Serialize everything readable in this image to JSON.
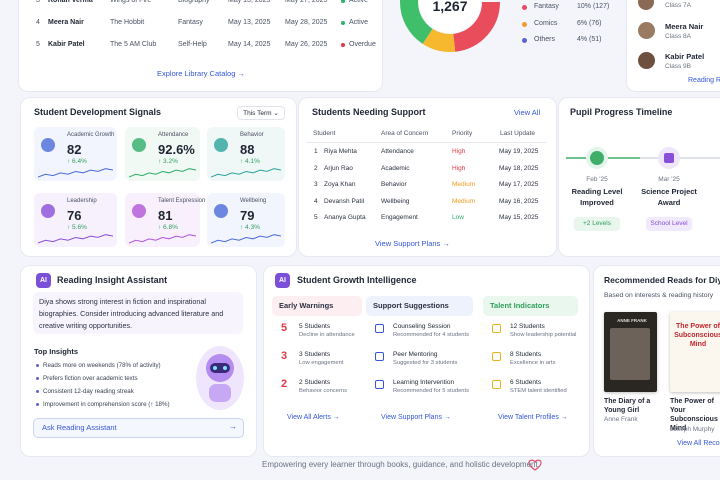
{
  "library_table": {
    "rows": [
      [
        "3",
        "Rohan Verma",
        "Wings of Fire",
        "Biography",
        "May 13, 2025",
        "May 27, 2025",
        "Active"
      ],
      [
        "4",
        "Meera Nair",
        "The Hobbit",
        "Fantasy",
        "May 13, 2025",
        "May 28, 2025",
        "Active"
      ],
      [
        "5",
        "Kabir Patel",
        "The 5 AM Club",
        "Self-Help",
        "May 14, 2025",
        "May 26, 2025",
        "Overdue"
      ]
    ],
    "link": "Explore Library Catalog →"
  },
  "genre_chart": {
    "total": "1,267",
    "legend": [
      {
        "label": "Fantasy",
        "value": "10% (127)",
        "color": "#e94c5b"
      },
      {
        "label": "Comics",
        "value": "6% (76)",
        "color": "#f39a2e"
      },
      {
        "label": "Others",
        "value": "4% (51)",
        "color": "#5a63d6"
      }
    ]
  },
  "student_list": {
    "top_class": "Class 7A",
    "items": [
      {
        "name": "Meera Nair",
        "class": "Class 8A"
      },
      {
        "name": "Kabir Patel",
        "class": "Class 9B"
      }
    ],
    "link": "Reading Reports"
  },
  "development_signals": {
    "title": "Student Development Signals",
    "period": "This Term ⌄",
    "tiles": [
      {
        "label": "Academic Growth",
        "value": "82",
        "change": "↑ 6.4%"
      },
      {
        "label": "Attendance",
        "value": "92.6%",
        "change": "↑ 3.2%"
      },
      {
        "label": "Behavior",
        "value": "88",
        "change": "↑ 4.1%"
      },
      {
        "label": "Leadership",
        "value": "76",
        "change": "↑ 5.6%"
      },
      {
        "label": "Talent Expression",
        "value": "81",
        "change": "↑ 6.8%"
      },
      {
        "label": "Wellbeing",
        "value": "79",
        "change": "↑ 4.3%"
      }
    ]
  },
  "support": {
    "title": "Students Needing Support",
    "view_all": "View All",
    "headers": [
      "Student",
      "Area of Concern",
      "Priority",
      "Last Update"
    ],
    "rows": [
      [
        "1",
        "Riya Mehta",
        "Attendance",
        "High",
        "May 19, 2025"
      ],
      [
        "2",
        "Arjun Rao",
        "Academic",
        "High",
        "May 18, 2025"
      ],
      [
        "3",
        "Zoya Khan",
        "Behavior",
        "Medium",
        "May 17, 2025"
      ],
      [
        "4",
        "Devansh Patil",
        "Wellbeing",
        "Medium",
        "May 16, 2025"
      ],
      [
        "5",
        "Ananya Gupta",
        "Engagement",
        "Low",
        "May 15, 2025"
      ]
    ],
    "link": "View Support Plans →"
  },
  "timeline": {
    "title": "Pupil Progress Timeline",
    "events": [
      {
        "date": "Feb '25",
        "title": "Reading Level Improved",
        "tag": "+2 Levels"
      },
      {
        "date": "Mar '25",
        "title": "Science Project Award",
        "tag": "School Level"
      }
    ]
  },
  "assistant": {
    "badge": "AI",
    "title": "Reading Insight Assistant",
    "summary": "Diya shows strong interest in fiction and inspirational biographies. Consider introducing advanced literature and creative writing opportunities.",
    "insights_title": "Top Insights",
    "insights": [
      "Reads more on weekends (78% of activity)",
      "Prefers fiction over academic texts",
      "Consistent 12-day reading streak",
      "Improvement in comprehension score (↑ 18%)"
    ],
    "button": "Ask Reading Assistant",
    "button_arrow": "→"
  },
  "growth": {
    "badge": "AI",
    "title": "Student Growth Intelligence",
    "columns": [
      {
        "title": "Early Warnings",
        "items": [
          {
            "mark": "5",
            "label": "5 Students",
            "detail": "Decline in attendance"
          },
          {
            "mark": "3",
            "label": "3 Students",
            "detail": "Low engagement"
          },
          {
            "mark": "2",
            "label": "2 Students",
            "detail": "Behavior concerns"
          }
        ],
        "link": "View All Alerts →"
      },
      {
        "title": "Support Suggestions",
        "items": [
          {
            "label": "Counseling Session",
            "detail": "Recommended for 4 students"
          },
          {
            "label": "Peer Mentoring",
            "detail": "Suggested for 3 students"
          },
          {
            "label": "Learning Intervention",
            "detail": "Recommended for 5 students"
          }
        ],
        "link": "View Support Plans →"
      },
      {
        "title": "Talent Indicators",
        "items": [
          {
            "label": "12 Students",
            "detail": "Show leadership potential"
          },
          {
            "label": "8 Students",
            "detail": "Excellence in arts"
          },
          {
            "label": "6 Students",
            "detail": "STEM talent identified"
          }
        ],
        "link": "View Talent Profiles →"
      }
    ]
  },
  "recommended": {
    "title": "Recommended Reads for Diya",
    "subtitle": "Based on interests & reading history",
    "books": [
      {
        "title": "The Diary of a Young Girl",
        "author": "Anne Frank",
        "cover": "ANNE FRANK"
      },
      {
        "title": "The Power of Your Subconscious Mind",
        "author": "Joseph Murphy",
        "cover": "The Power of Subconscious Mind"
      }
    ],
    "link": "View All Recommendations"
  },
  "footer": "Empowering every learner through books, guidance, and holistic development."
}
